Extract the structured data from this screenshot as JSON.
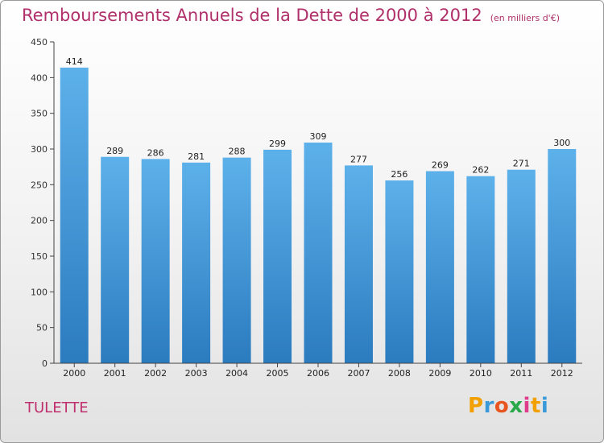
{
  "title": "Remboursements Annuels de la Dette de 2000 à 2012",
  "unit": "(en milliers d'€)",
  "commune": "TULETTE",
  "logo": {
    "text": "Proxiti",
    "colors": [
      "#f2a000",
      "#3a9ad9",
      "#e8551e",
      "#2aa84a",
      "#e03b8b",
      "#f2a000",
      "#3a9ad9"
    ]
  },
  "colors": {
    "title": "#b0306a",
    "bar_top": "#5db1ea",
    "bar_bottom": "#2b7bbf"
  },
  "chart_data": {
    "type": "bar",
    "categories": [
      "2000",
      "2001",
      "2002",
      "2003",
      "2004",
      "2005",
      "2006",
      "2007",
      "2008",
      "2009",
      "2010",
      "2011",
      "2012"
    ],
    "values": [
      414,
      289,
      286,
      281,
      288,
      299,
      309,
      277,
      256,
      269,
      262,
      271,
      300
    ],
    "ylim": [
      0,
      450
    ],
    "yticks": [
      0,
      50,
      100,
      150,
      200,
      250,
      300,
      350,
      400,
      450
    ],
    "grid": false
  }
}
